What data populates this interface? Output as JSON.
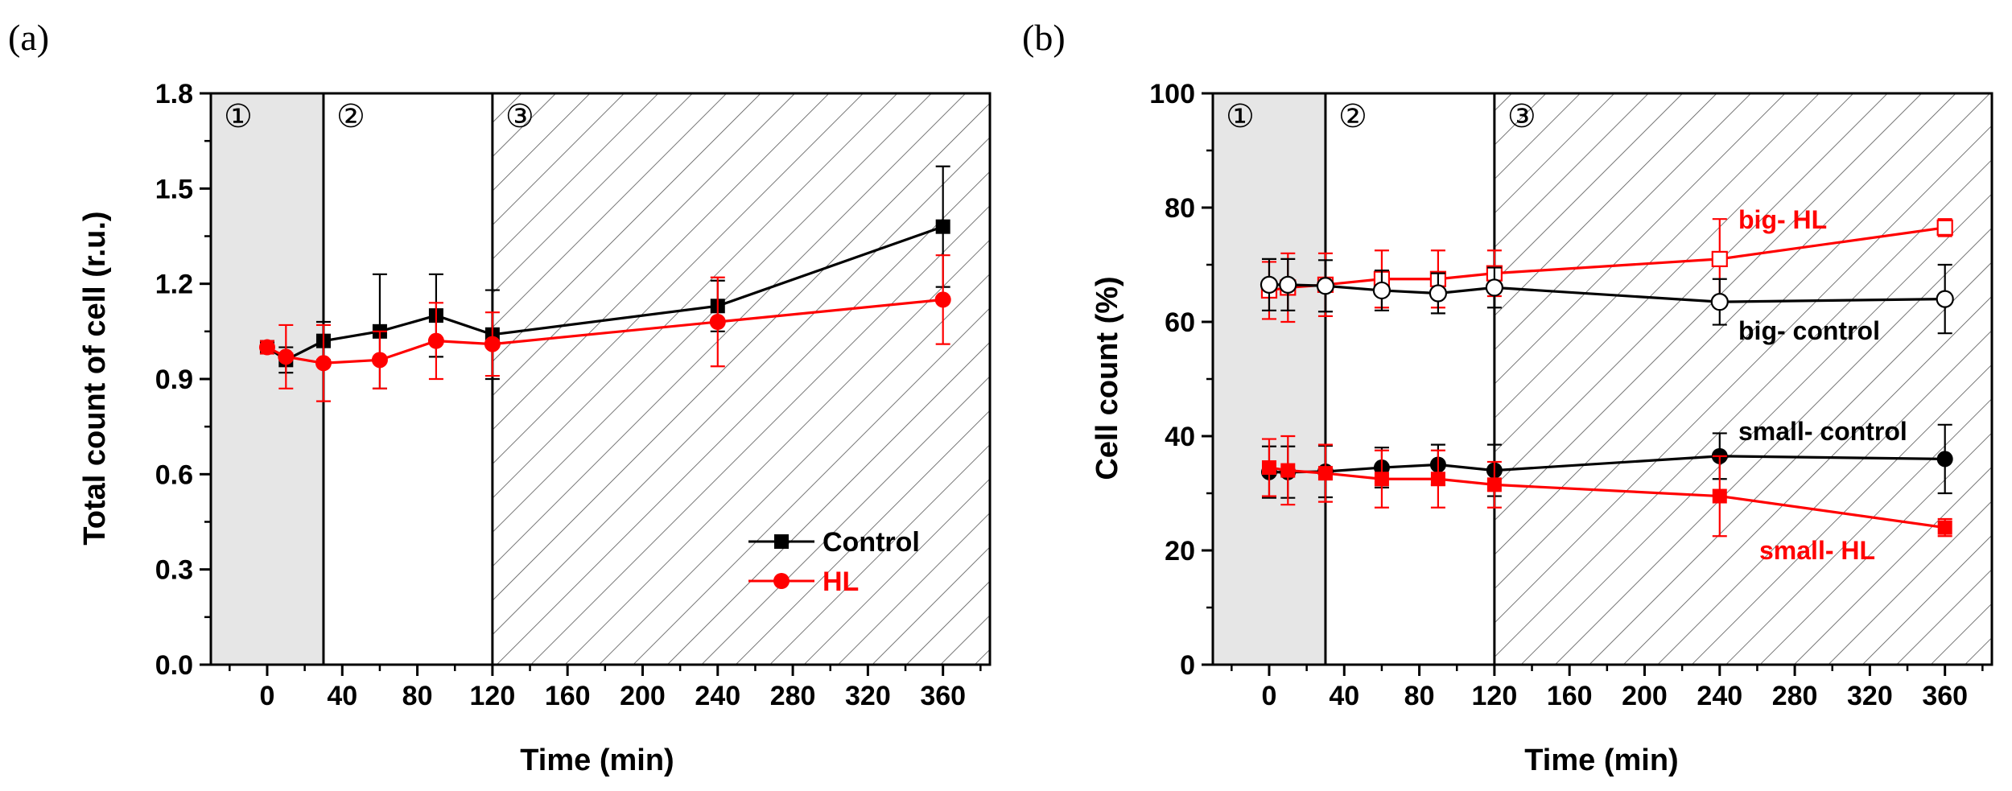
{
  "figure": {
    "panels": [
      "a",
      "b"
    ]
  },
  "colors": {
    "control": "#000000",
    "hl": "#ff0000",
    "shade": "#e6e6e6",
    "hatch": "#555555"
  },
  "chart_data": [
    {
      "id": "a",
      "panel_label_text": "(a)",
      "type": "line",
      "xlabel": "Time (min)",
      "ylabel": "Total count of cell (r.u.)",
      "xlim": [
        -30,
        385
      ],
      "ylim": [
        0,
        1.8
      ],
      "xticks": [
        0,
        40,
        80,
        120,
        160,
        200,
        240,
        280,
        320,
        360
      ],
      "yticks": [
        0.0,
        0.3,
        0.6,
        0.9,
        1.2,
        1.5,
        1.8
      ],
      "ytick_labels": [
        "0.0",
        "0.3",
        "0.6",
        "0.9",
        "1.2",
        "1.5",
        "1.8"
      ],
      "regions": [
        {
          "label": "①",
          "from": -30,
          "to": 30,
          "style": "shaded"
        },
        {
          "label": "②",
          "from": 30,
          "to": 120,
          "style": "blank"
        },
        {
          "label": "③",
          "from": 120,
          "to": 385,
          "style": "hatched"
        }
      ],
      "legend": {
        "position": "bottom-right",
        "entries": [
          "Control",
          "HL"
        ]
      },
      "series": [
        {
          "name": "Control",
          "color": "#000000",
          "marker": "square-filled",
          "x": [
            0,
            10,
            30,
            60,
            90,
            120,
            240,
            360
          ],
          "y": [
            1.0,
            0.96,
            1.02,
            1.05,
            1.1,
            1.04,
            1.13,
            1.38
          ],
          "err": [
            0.02,
            0.04,
            0.06,
            0.18,
            0.13,
            0.14,
            0.08,
            0.19
          ]
        },
        {
          "name": "HL",
          "color": "#ff0000",
          "marker": "circle-filled",
          "x": [
            0,
            10,
            30,
            60,
            90,
            120,
            240,
            360
          ],
          "y": [
            1.0,
            0.97,
            0.95,
            0.96,
            1.02,
            1.01,
            1.08,
            1.15
          ],
          "err": [
            0.02,
            0.1,
            0.12,
            0.09,
            0.12,
            0.1,
            0.14,
            0.14
          ]
        }
      ]
    },
    {
      "id": "b",
      "panel_label_text": "(b)",
      "type": "line",
      "xlabel": "Time (min)",
      "ylabel": "Cell count (%)",
      "xlim": [
        -30,
        385
      ],
      "ylim": [
        0,
        100
      ],
      "xticks": [
        0,
        40,
        80,
        120,
        160,
        200,
        240,
        280,
        320,
        360
      ],
      "yticks": [
        0,
        20,
        40,
        60,
        80,
        100
      ],
      "ytick_labels": [
        "0",
        "20",
        "40",
        "60",
        "80",
        "100"
      ],
      "regions": [
        {
          "label": "①",
          "from": -30,
          "to": 30,
          "style": "shaded"
        },
        {
          "label": "②",
          "from": 30,
          "to": 120,
          "style": "blank"
        },
        {
          "label": "③",
          "from": 120,
          "to": 385,
          "style": "hatched"
        }
      ],
      "series": [
        {
          "name": "big- HL",
          "color": "#ff0000",
          "marker": "square-open",
          "x": [
            0,
            10,
            30,
            60,
            90,
            120,
            240,
            360
          ],
          "y": [
            65.5,
            66,
            66.5,
            67.5,
            67.5,
            68.5,
            71,
            76.5
          ],
          "err": [
            5,
            6,
            5.5,
            5,
            5,
            4,
            7,
            1.5
          ]
        },
        {
          "name": "big- control",
          "color": "#000000",
          "marker": "circle-open",
          "x": [
            0,
            10,
            30,
            60,
            90,
            120,
            240,
            360
          ],
          "y": [
            66.5,
            66.5,
            66.3,
            65.5,
            65,
            66,
            63.5,
            64
          ],
          "err": [
            4.5,
            4.5,
            4.5,
            3.5,
            3.5,
            3.5,
            4,
            6
          ]
        },
        {
          "name": "small- control",
          "color": "#000000",
          "marker": "circle-filled",
          "x": [
            0,
            10,
            30,
            60,
            90,
            120,
            240,
            360
          ],
          "y": [
            33.7,
            33.7,
            33.8,
            34.5,
            35,
            34,
            36.5,
            36
          ],
          "err": [
            4.5,
            4.5,
            4.5,
            3.5,
            3.5,
            4.5,
            4,
            6
          ]
        },
        {
          "name": "small- HL",
          "color": "#ff0000",
          "marker": "square-filled",
          "x": [
            0,
            10,
            30,
            60,
            90,
            120,
            240,
            360
          ],
          "y": [
            34.5,
            34,
            33.5,
            32.5,
            32.5,
            31.5,
            29.5,
            24
          ],
          "err": [
            5,
            6,
            5,
            5,
            5,
            4,
            7,
            1.5
          ]
        }
      ],
      "annotations": [
        {
          "text": "big- HL",
          "color": "#ff0000"
        },
        {
          "text": "big- control",
          "color": "#000000"
        },
        {
          "text": "small- control",
          "color": "#000000"
        },
        {
          "text": "small- HL",
          "color": "#ff0000"
        }
      ]
    }
  ]
}
